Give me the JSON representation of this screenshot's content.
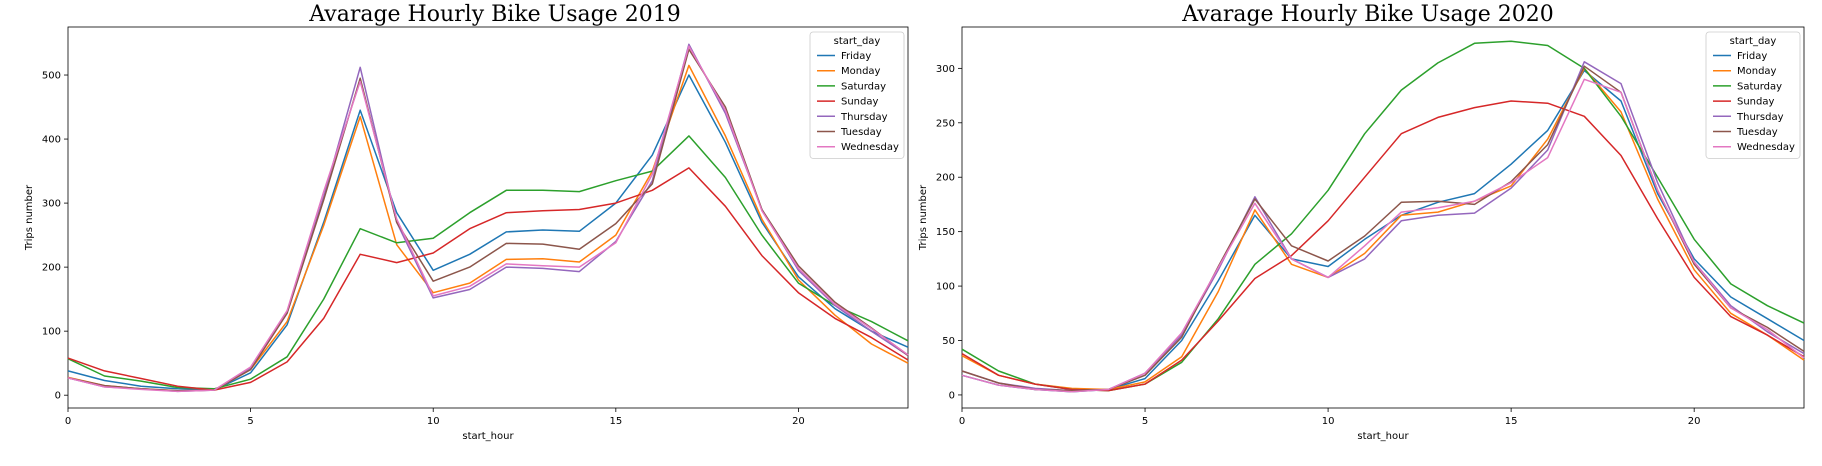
{
  "palette": {
    "Friday": "#1f77b4",
    "Monday": "#ff7f0e",
    "Saturday": "#2ca02c",
    "Sunday": "#d62728",
    "Thursday": "#9467bd",
    "Tuesday": "#8c564b",
    "Wednesday": "#e377c2"
  },
  "chart_data": [
    {
      "type": "line",
      "title": "Avarage Hourly Bike Usage 2019",
      "xlabel": "start_hour",
      "ylabel": "Trips number",
      "xlim": [
        0,
        23
      ],
      "ylim": [
        -20,
        575
      ],
      "xticks": [
        0,
        5,
        10,
        15,
        20
      ],
      "yticks": [
        0,
        100,
        200,
        300,
        400,
        500
      ],
      "grid": false,
      "legend": {
        "title": "start_day",
        "placement": "top-right"
      },
      "x": [
        0,
        1,
        2,
        3,
        4,
        5,
        6,
        7,
        8,
        9,
        10,
        11,
        12,
        13,
        14,
        15,
        16,
        17,
        18,
        19,
        20,
        21,
        22,
        23
      ],
      "series": [
        {
          "name": "Friday",
          "values": [
            38,
            23,
            14,
            10,
            8,
            35,
            110,
            270,
            445,
            285,
            195,
            220,
            255,
            258,
            256,
            300,
            375,
            500,
            395,
            270,
            185,
            135,
            100,
            75
          ]
        },
        {
          "name": "Monday",
          "values": [
            28,
            15,
            10,
            7,
            8,
            40,
            115,
            265,
            435,
            235,
            160,
            175,
            212,
            213,
            208,
            250,
            350,
            515,
            405,
            275,
            180,
            125,
            80,
            50
          ]
        },
        {
          "name": "Saturday",
          "values": [
            57,
            30,
            22,
            12,
            10,
            25,
            60,
            150,
            260,
            238,
            245,
            285,
            320,
            320,
            318,
            335,
            350,
            405,
            340,
            250,
            175,
            140,
            115,
            85
          ]
        },
        {
          "name": "Sunday",
          "values": [
            58,
            38,
            26,
            14,
            8,
            20,
            52,
            120,
            220,
            207,
            222,
            260,
            285,
            288,
            290,
            300,
            320,
            355,
            295,
            218,
            160,
            120,
            90,
            55
          ]
        },
        {
          "name": "Thursday",
          "values": [
            27,
            13,
            10,
            6,
            8,
            42,
            128,
            310,
            512,
            270,
            152,
            165,
            200,
            198,
            193,
            240,
            335,
            548,
            440,
            290,
            195,
            140,
            100,
            62
          ]
        },
        {
          "name": "Tuesday",
          "values": [
            27,
            15,
            10,
            7,
            8,
            40,
            128,
            305,
            495,
            270,
            178,
            200,
            237,
            236,
            228,
            268,
            330,
            540,
            450,
            290,
            202,
            145,
            105,
            62
          ]
        },
        {
          "name": "Wednesday",
          "values": [
            27,
            13,
            9,
            6,
            8,
            44,
            132,
            318,
            490,
            275,
            155,
            170,
            205,
            202,
            200,
            238,
            345,
            545,
            445,
            288,
            198,
            142,
            104,
            63
          ]
        }
      ]
    },
    {
      "type": "line",
      "title": "Avarage Hourly Bike Usage 2020",
      "xlabel": "start_hour",
      "ylabel": "Trips number",
      "xlim": [
        0,
        23
      ],
      "ylim": [
        -12,
        338
      ],
      "xticks": [
        0,
        5,
        10,
        15,
        20
      ],
      "yticks": [
        0,
        50,
        100,
        150,
        200,
        250,
        300
      ],
      "grid": false,
      "legend": {
        "title": "start_day",
        "placement": "top-right"
      },
      "x": [
        0,
        1,
        2,
        3,
        4,
        5,
        6,
        7,
        8,
        9,
        10,
        11,
        12,
        13,
        14,
        15,
        16,
        17,
        18,
        19,
        20,
        21,
        22,
        23
      ],
      "series": [
        {
          "name": "Friday",
          "values": [
            18,
            9,
            5,
            3,
            5,
            15,
            50,
            105,
            165,
            125,
            118,
            143,
            165,
            177,
            185,
            212,
            243,
            298,
            270,
            185,
            125,
            90,
            70,
            50
          ]
        },
        {
          "name": "Monday",
          "values": [
            36,
            18,
            10,
            6,
            5,
            12,
            35,
            95,
            170,
            120,
            108,
            130,
            165,
            168,
            178,
            192,
            235,
            300,
            260,
            180,
            115,
            75,
            55,
            32
          ]
        },
        {
          "name": "Saturday",
          "values": [
            42,
            22,
            10,
            5,
            4,
            10,
            30,
            70,
            120,
            148,
            188,
            240,
            280,
            305,
            323,
            325,
            321,
            300,
            256,
            200,
            143,
            102,
            82,
            66
          ]
        },
        {
          "name": "Sunday",
          "values": [
            38,
            18,
            10,
            5,
            4,
            10,
            32,
            68,
            107,
            128,
            160,
            200,
            240,
            255,
            264,
            270,
            268,
            256,
            220,
            162,
            108,
            72,
            55,
            35
          ]
        },
        {
          "name": "Thursday",
          "values": [
            22,
            11,
            6,
            4,
            5,
            20,
            55,
            115,
            182,
            125,
            108,
            125,
            160,
            165,
            167,
            190,
            225,
            306,
            286,
            195,
            122,
            82,
            58,
            38
          ]
        },
        {
          "name": "Tuesday",
          "values": [
            22,
            11,
            5,
            4,
            5,
            18,
            53,
            118,
            180,
            137,
            123,
            146,
            177,
            178,
            175,
            196,
            230,
            302,
            278,
            188,
            120,
            80,
            62,
            40
          ]
        },
        {
          "name": "Wednesday",
          "values": [
            18,
            9,
            5,
            3,
            5,
            20,
            57,
            117,
            176,
            125,
            108,
            137,
            168,
            172,
            178,
            195,
            218,
            290,
            278,
            188,
            122,
            80,
            60,
            34
          ]
        }
      ]
    }
  ]
}
